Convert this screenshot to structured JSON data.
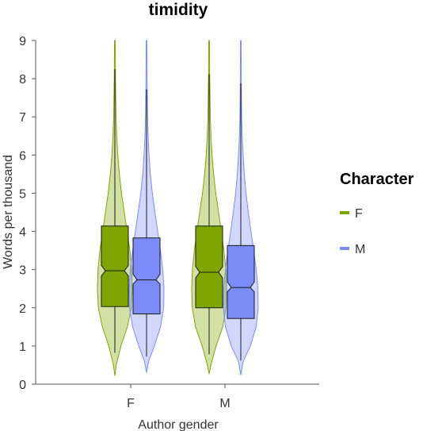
{
  "chart_data": {
    "type": "violin",
    "title": "timidity",
    "xlabel": "Author gender",
    "ylabel": "Words per thousand",
    "ylim": [
      0,
      9
    ],
    "yticks": [
      0,
      1,
      2,
      3,
      4,
      5,
      6,
      7,
      8,
      9
    ],
    "categories": [
      "F",
      "M"
    ],
    "legend": {
      "title": "Character",
      "position": "right"
    },
    "series": [
      {
        "name": "F",
        "color": "#7fa600",
        "boxes": [
          {
            "category": "F",
            "q1": 2.03,
            "median": 2.97,
            "q3": 4.14,
            "notch_low": 2.83,
            "notch_high": 3.11,
            "whisker_low": 0.82,
            "whisker_high": 8.25
          },
          {
            "category": "M",
            "q1": 2.0,
            "median": 2.93,
            "q3": 4.14,
            "notch_low": 2.78,
            "notch_high": 3.08,
            "whisker_low": 0.78,
            "whisker_high": 8.12
          }
        ],
        "violins": [
          {
            "category": "F",
            "y": [
              0.22,
              0.5,
              1.0,
              1.5,
              2.0,
              2.5,
              3.0,
              3.5,
              4.0,
              4.5,
              5.0,
              5.5,
              6.0,
              6.5,
              7.0,
              8.0,
              9.0
            ],
            "density": [
              0.0,
              0.08,
              0.35,
              0.72,
              0.95,
              1.0,
              0.97,
              0.86,
              0.7,
              0.54,
              0.38,
              0.26,
              0.17,
              0.11,
              0.07,
              0.035,
              0.02
            ]
          },
          {
            "category": "M",
            "y": [
              0.27,
              0.5,
              1.0,
              1.5,
              2.0,
              2.5,
              3.0,
              3.5,
              4.0,
              4.5,
              5.0,
              5.5,
              6.0,
              6.5,
              7.0,
              8.0,
              9.0
            ],
            "density": [
              0.0,
              0.1,
              0.4,
              0.78,
              0.97,
              1.0,
              0.96,
              0.85,
              0.7,
              0.54,
              0.38,
              0.26,
              0.17,
              0.11,
              0.07,
              0.035,
              0.02
            ]
          }
        ]
      },
      {
        "name": "M",
        "color": "#7b8cf8",
        "boxes": [
          {
            "category": "F",
            "q1": 1.84,
            "median": 2.73,
            "q3": 3.83,
            "notch_low": 2.62,
            "notch_high": 2.88,
            "whisker_low": 0.72,
            "whisker_high": 7.72
          },
          {
            "category": "M",
            "q1": 1.72,
            "median": 2.53,
            "q3": 3.63,
            "notch_low": 2.42,
            "notch_high": 2.68,
            "whisker_low": 0.62,
            "whisker_high": 7.88
          }
        ],
        "violins": [
          {
            "category": "F",
            "y": [
              0.3,
              0.6,
              1.0,
              1.5,
              2.0,
              2.5,
              3.0,
              3.5,
              4.0,
              4.5,
              5.0,
              5.5,
              6.0,
              6.5,
              7.0,
              8.0,
              9.0
            ],
            "density": [
              0.0,
              0.12,
              0.45,
              0.8,
              0.98,
              1.0,
              0.93,
              0.8,
              0.64,
              0.48,
              0.33,
              0.22,
              0.14,
              0.09,
              0.06,
              0.03,
              0.02
            ]
          },
          {
            "category": "M",
            "y": [
              0.24,
              0.6,
              1.0,
              1.5,
              2.0,
              2.5,
              3.0,
              3.5,
              4.0,
              4.5,
              5.0,
              5.5,
              6.0,
              6.5,
              7.0,
              8.0,
              9.0
            ],
            "density": [
              0.0,
              0.14,
              0.55,
              0.88,
              1.0,
              0.98,
              0.88,
              0.74,
              0.58,
              0.43,
              0.3,
              0.2,
              0.13,
              0.08,
              0.05,
              0.028,
              0.02
            ]
          }
        ]
      }
    ]
  }
}
